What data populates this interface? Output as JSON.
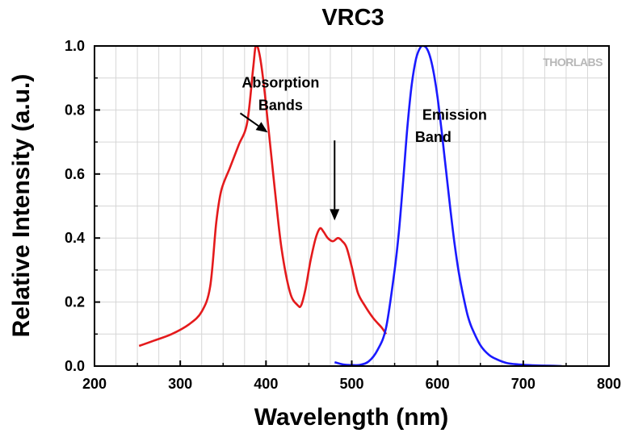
{
  "chart_data": {
    "type": "line",
    "title": "VRC3",
    "xlabel": "Wavelength (nm)",
    "ylabel": "Relative Intensity (a.u.)",
    "xlim": [
      200,
      800
    ],
    "ylim": [
      0.0,
      1.0
    ],
    "xticks": [
      "200",
      "300",
      "400",
      "500",
      "600",
      "700",
      "800"
    ],
    "yticks": [
      "0.0",
      "0.2",
      "0.4",
      "0.6",
      "0.8",
      "1.0"
    ],
    "grid": true,
    "legend": "none",
    "series": [
      {
        "color": "#e41a1c",
        "x": [
          252,
          270,
          290,
          310,
          325,
          335,
          342,
          348,
          358,
          368,
          378,
          385,
          388,
          392,
          397,
          403,
          410,
          418,
          428,
          437,
          441,
          446,
          452,
          458,
          463,
          467,
          472,
          478,
          484,
          489,
          494,
          500,
          507,
          515,
          525,
          535,
          540
        ],
        "y": [
          0.063,
          0.08,
          0.1,
          0.13,
          0.17,
          0.25,
          0.45,
          0.55,
          0.62,
          0.69,
          0.76,
          0.93,
          1.0,
          0.98,
          0.89,
          0.74,
          0.56,
          0.37,
          0.23,
          0.19,
          0.19,
          0.24,
          0.33,
          0.4,
          0.43,
          0.42,
          0.4,
          0.39,
          0.4,
          0.39,
          0.37,
          0.31,
          0.23,
          0.19,
          0.15,
          0.12,
          0.1
        ]
      },
      {
        "color": "#1a1aff",
        "x": [
          480,
          490,
          500,
          510,
          520,
          530,
          540,
          550,
          555,
          560,
          565,
          570,
          575,
          580,
          584,
          588,
          592,
          596,
          600,
          605,
          610,
          615,
          620,
          625,
          630,
          635,
          640,
          650,
          660,
          670,
          680,
          690,
          700,
          715,
          730,
          745
        ],
        "y": [
          0.012,
          0.005,
          0.003,
          0.004,
          0.015,
          0.05,
          0.12,
          0.3,
          0.42,
          0.58,
          0.75,
          0.88,
          0.96,
          0.995,
          1.0,
          0.99,
          0.96,
          0.91,
          0.84,
          0.73,
          0.61,
          0.49,
          0.38,
          0.29,
          0.22,
          0.16,
          0.12,
          0.065,
          0.035,
          0.02,
          0.01,
          0.006,
          0.004,
          0.002,
          0.001,
          0.0
        ]
      }
    ],
    "annotations": [
      {
        "text": "Absorption",
        "x": 417,
        "y": 0.87
      },
      {
        "text": "Bands",
        "x": 417,
        "y": 0.8
      },
      {
        "text": "Emission",
        "x": 620,
        "y": 0.77
      },
      {
        "text": "Band",
        "x": 595,
        "y": 0.7
      }
    ],
    "arrows": [
      {
        "from": [
          370,
          0.79
        ],
        "to": [
          402,
          0.73
        ]
      },
      {
        "from": [
          480,
          0.705
        ],
        "to": [
          480,
          0.455
        ]
      }
    ],
    "watermark": "THORLABS"
  }
}
